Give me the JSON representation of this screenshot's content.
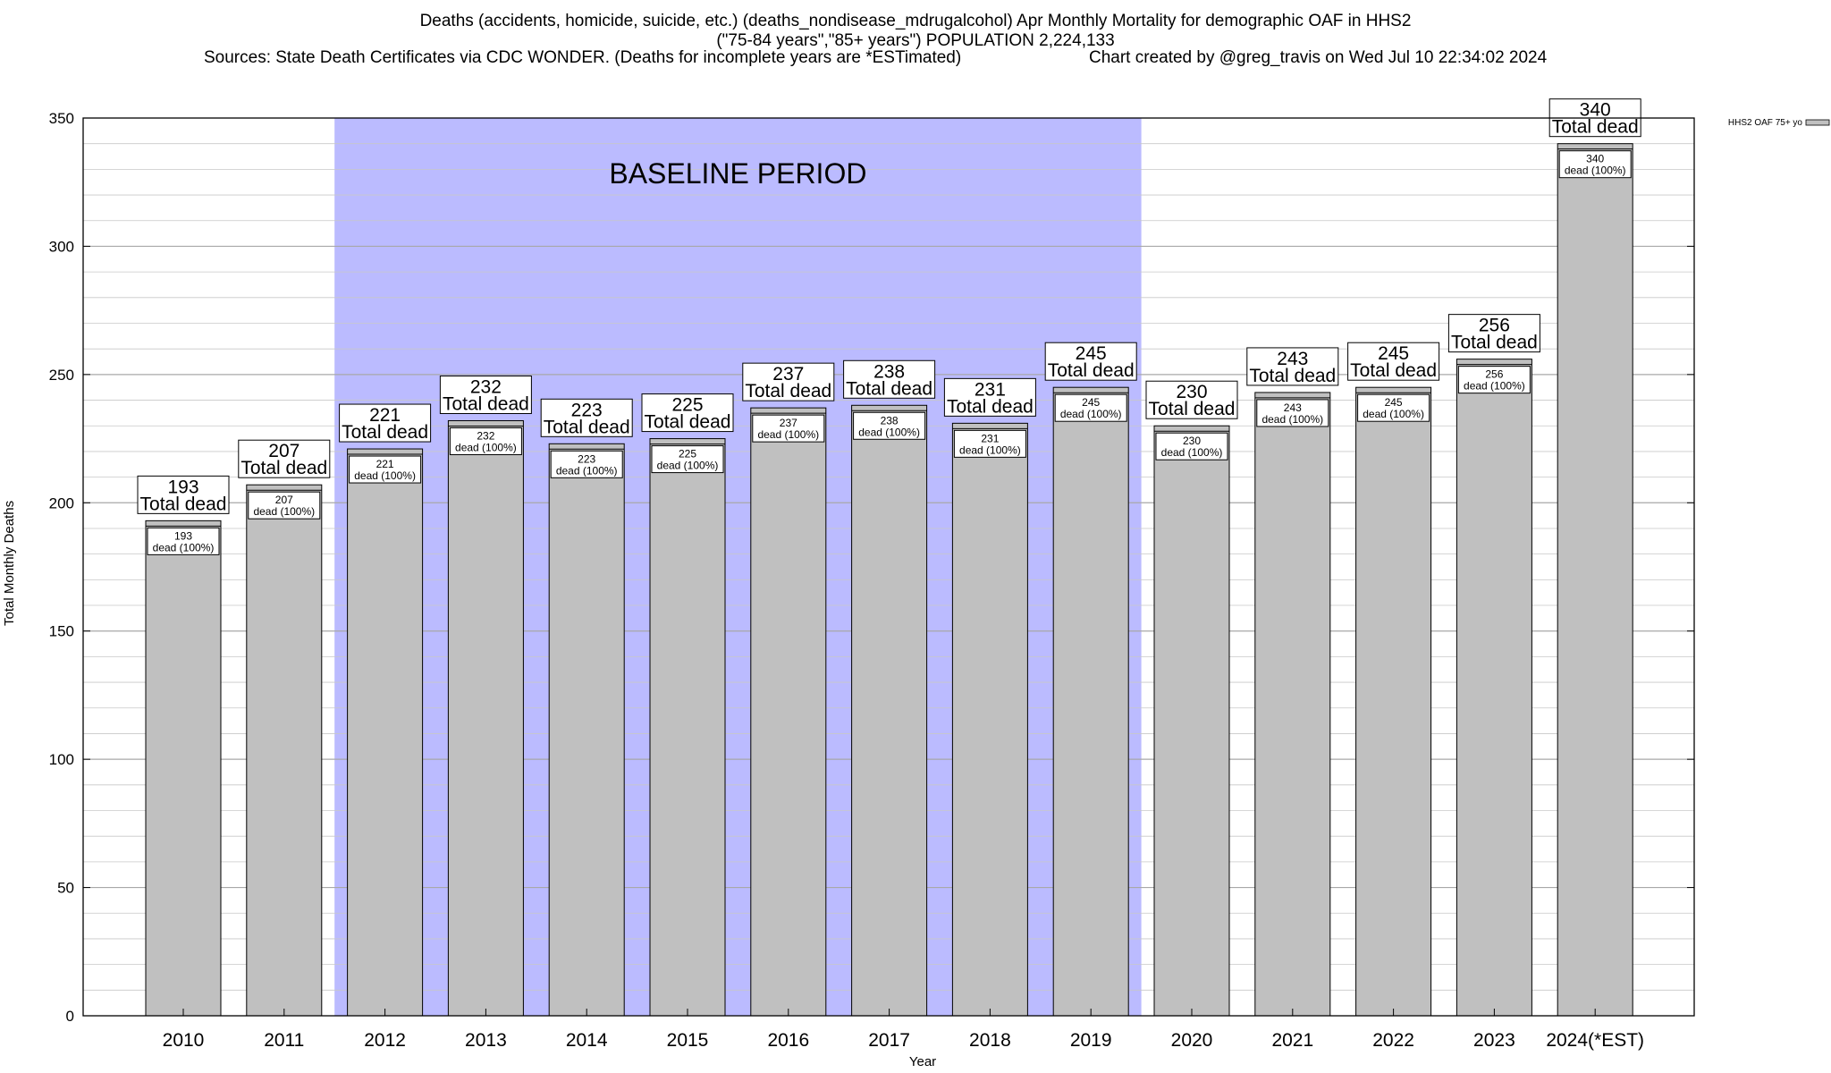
{
  "header": {
    "title_line1": "Deaths (accidents, homicide, suicide, etc.) (deaths_nondisease_mdrugalcohol) Apr Monthly Mortality for demographic OAF in HHS2",
    "title_line2": "(\"75-84 years\",\"85+ years\") POPULATION 2,224,133",
    "title_line3_left": "Sources: State Death Certificates via CDC WONDER. (Deaths for incomplete years are *ESTimated)",
    "title_line3_right": "Chart created by @greg_travis on Wed Jul 10 22:34:02 2024"
  },
  "chart_data": {
    "type": "bar",
    "categories": [
      "2010",
      "2011",
      "2012",
      "2013",
      "2014",
      "2015",
      "2016",
      "2017",
      "2018",
      "2019",
      "2020",
      "2021",
      "2022",
      "2023",
      "2024(*EST)"
    ],
    "series": [
      {
        "name": "HHS2 OAF 75+ yo",
        "values": [
          193,
          207,
          221,
          232,
          223,
          225,
          237,
          238,
          231,
          245,
          230,
          243,
          245,
          256,
          340
        ]
      }
    ],
    "xlabel": "Year",
    "ylabel": "Total Monthly Deaths",
    "ylim": [
      0,
      350
    ],
    "yticks": [
      0,
      50,
      100,
      150,
      200,
      250,
      300,
      350
    ],
    "grid": true,
    "legend_placement": "top-right",
    "total_label_text": "Total dead",
    "inner_label_suffix": "dead (100%)",
    "baseline": {
      "label": "BASELINE PERIOD",
      "start": "2012",
      "end": "2019"
    },
    "colors": {
      "bar": "#c0c0c0",
      "baseline": "#bbbbff",
      "grid": "#c8c8c8"
    }
  }
}
